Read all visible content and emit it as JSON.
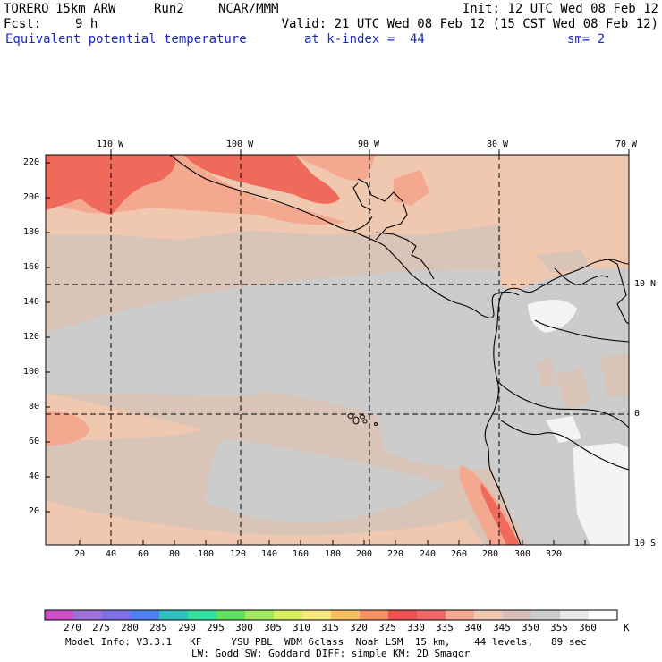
{
  "header": {
    "model": "TORERO",
    "resolution": "15km ARW",
    "run": "Run2",
    "org": "NCAR/MMM",
    "init": "Init: 12 UTC Wed 08 Feb 12",
    "fcst_label": "Fcst:",
    "fcst_value": "9 h",
    "valid": "Valid: 21 UTC Wed 08 Feb 12 (15 CST Wed 08 Feb 12)",
    "field": "Equivalent potential temperature",
    "level": "at k-index =  44",
    "smoothing": "sm= 2"
  },
  "top_ticks": [
    "110 W",
    "100 W",
    "90 W",
    "80 W",
    "70 W"
  ],
  "right_ticks": [
    "10 N",
    "0",
    "10 S"
  ],
  "left_ticks": [
    "220",
    "200",
    "180",
    "160",
    "140",
    "120",
    "100",
    "80",
    "60",
    "40",
    "20"
  ],
  "bottom_ticks": [
    "20",
    "40",
    "60",
    "80",
    "100",
    "120",
    "140",
    "160",
    "180",
    "200",
    "220",
    "240",
    "260",
    "280",
    "300",
    "320"
  ],
  "colorbar": {
    "labels": [
      "270",
      "275",
      "280",
      "285",
      "290",
      "295",
      "300",
      "305",
      "310",
      "315",
      "320",
      "325",
      "330",
      "335",
      "340",
      "345",
      "350",
      "355",
      "360"
    ],
    "unit": "K",
    "colors": [
      "#d050c8",
      "#a070d8",
      "#8070e8",
      "#5080f0",
      "#30c0c0",
      "#30e0a0",
      "#60e060",
      "#a0e860",
      "#d8f060",
      "#f8e880",
      "#f8c060",
      "#f89060",
      "#f05050",
      "#f06868",
      "#f8a890",
      "#f0c8b0",
      "#d8c0b8",
      "#cccccc",
      "#e8e8e8",
      "#ffffff"
    ]
  },
  "model_info": {
    "line1": "Model Info: V3.3.1   KF     YSU PBL  WDM 6class  Noah LSM  15 km,    44 levels,   89 sec",
    "line2": "LW: Godd SW: Goddard DIFF: simple KM: 2D Smagor"
  },
  "field_colors": {
    "warm_red": "#f06a5c",
    "salmon": "#f5a890",
    "peach": "#f0c8b0",
    "taupe": "#d9c4b8",
    "light_gray": "#cccccc",
    "white": "#f4f4f4"
  }
}
